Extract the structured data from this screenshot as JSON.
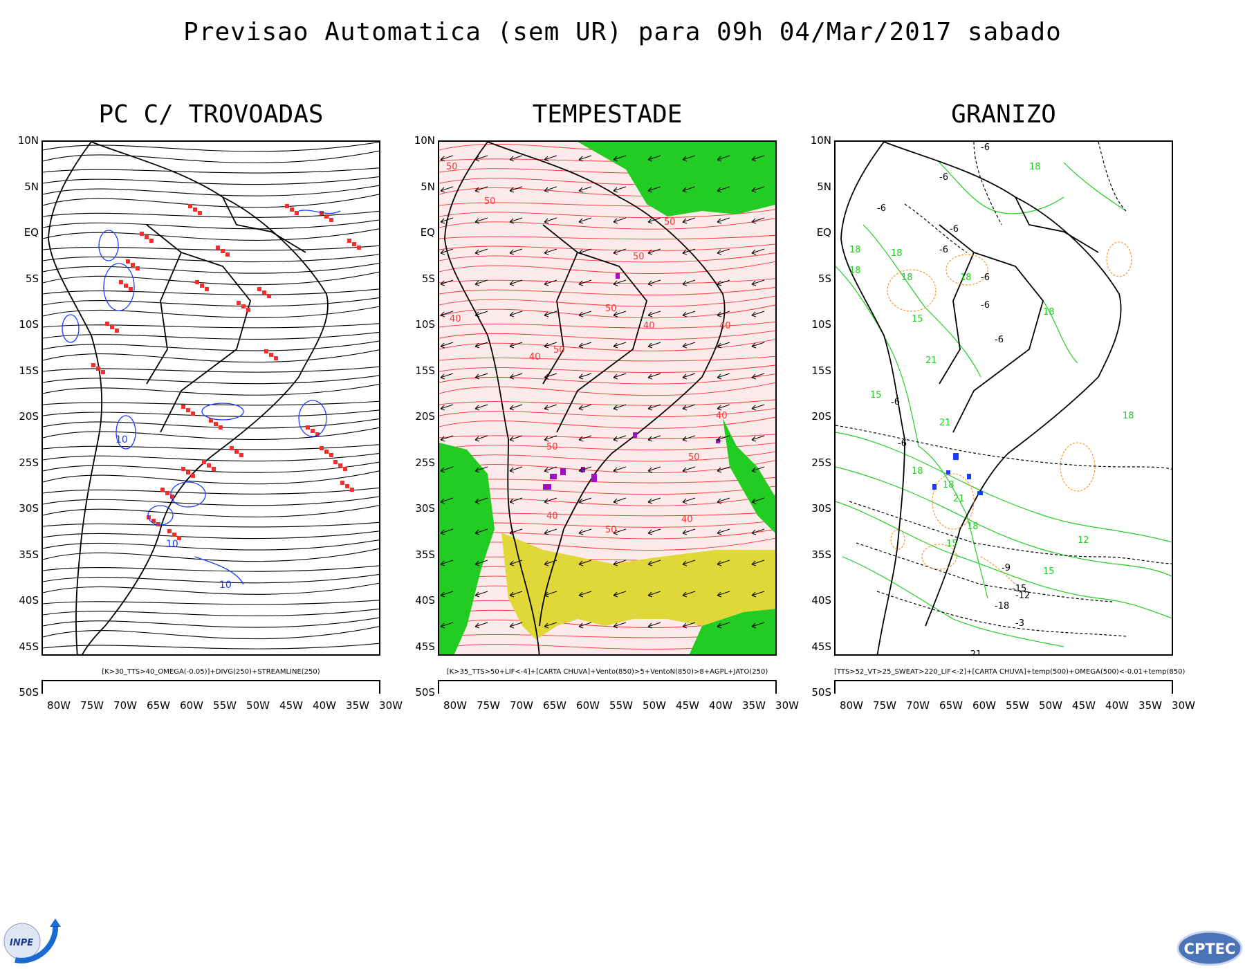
{
  "title": "Previsao Automatica (sem UR) para 09h 04/Mar/2017 sabado",
  "lat_labels": [
    "10N",
    "5N",
    "EQ",
    "5S",
    "10S",
    "15S",
    "20S",
    "25S",
    "30S",
    "35S",
    "40S",
    "45S",
    "50S"
  ],
  "lon_labels": [
    "80W",
    "75W",
    "70W",
    "65W",
    "60W",
    "55W",
    "50W",
    "45W",
    "40W",
    "35W",
    "30W"
  ],
  "panels": [
    {
      "title": "PC C/ TROVOADAS",
      "caption": "[K>30_TTS>40_OMEGA(-0.05)]+DIVG(250)+STREAMLINE(250)",
      "contour_labels": [
        "10",
        "10",
        "10"
      ],
      "colors": {
        "lines": "#000000",
        "contours": "#1a3cff",
        "cells": "#ff2a2a"
      }
    },
    {
      "title": "TEMPESTADE",
      "caption": "[K>35_TTS>50+LIF<-4]+[CARTA CHUVA]+Vento(850)>5+VentoN(850)>8+AGPL+JATO(250)",
      "contour_labels": [
        "50",
        "50",
        "50",
        "50",
        "40",
        "40",
        "50",
        "40",
        "50",
        "40",
        "40",
        "50",
        "40",
        "50",
        "50",
        "40"
      ],
      "colors": {
        "background": "#fdeaea",
        "lines": "#ff3030",
        "green": "#22cc22",
        "yellow": "#e0d838",
        "purple": "#a010c0"
      }
    },
    {
      "title": "GRANIZO",
      "caption": "[TTS>52_VT>25_SWEAT>220_LIF<-2]+[CARTA CHUVA]+temp(500)+OMEGA(500)<-0.01+temp(850)",
      "contour_labels": [
        "-6",
        "18",
        "-6",
        "-6",
        "-6",
        "-6",
        "-6",
        "18",
        "18",
        "18",
        "-6",
        "18",
        "-6",
        "18",
        "21",
        "15",
        "18",
        "-6",
        "15",
        "21",
        "-6",
        "18",
        "18",
        "21",
        "18",
        "15",
        "-9",
        "-12",
        "-15",
        "-18",
        "-3",
        "-21",
        "15",
        "18",
        "12"
      ],
      "colors": {
        "temp500": "#000000",
        "temp850": "#22cc22",
        "omega": "#ff8c1a",
        "cells": "#1a3cff"
      }
    }
  ],
  "logos": {
    "left": "INPE",
    "right": "CPTEC"
  }
}
